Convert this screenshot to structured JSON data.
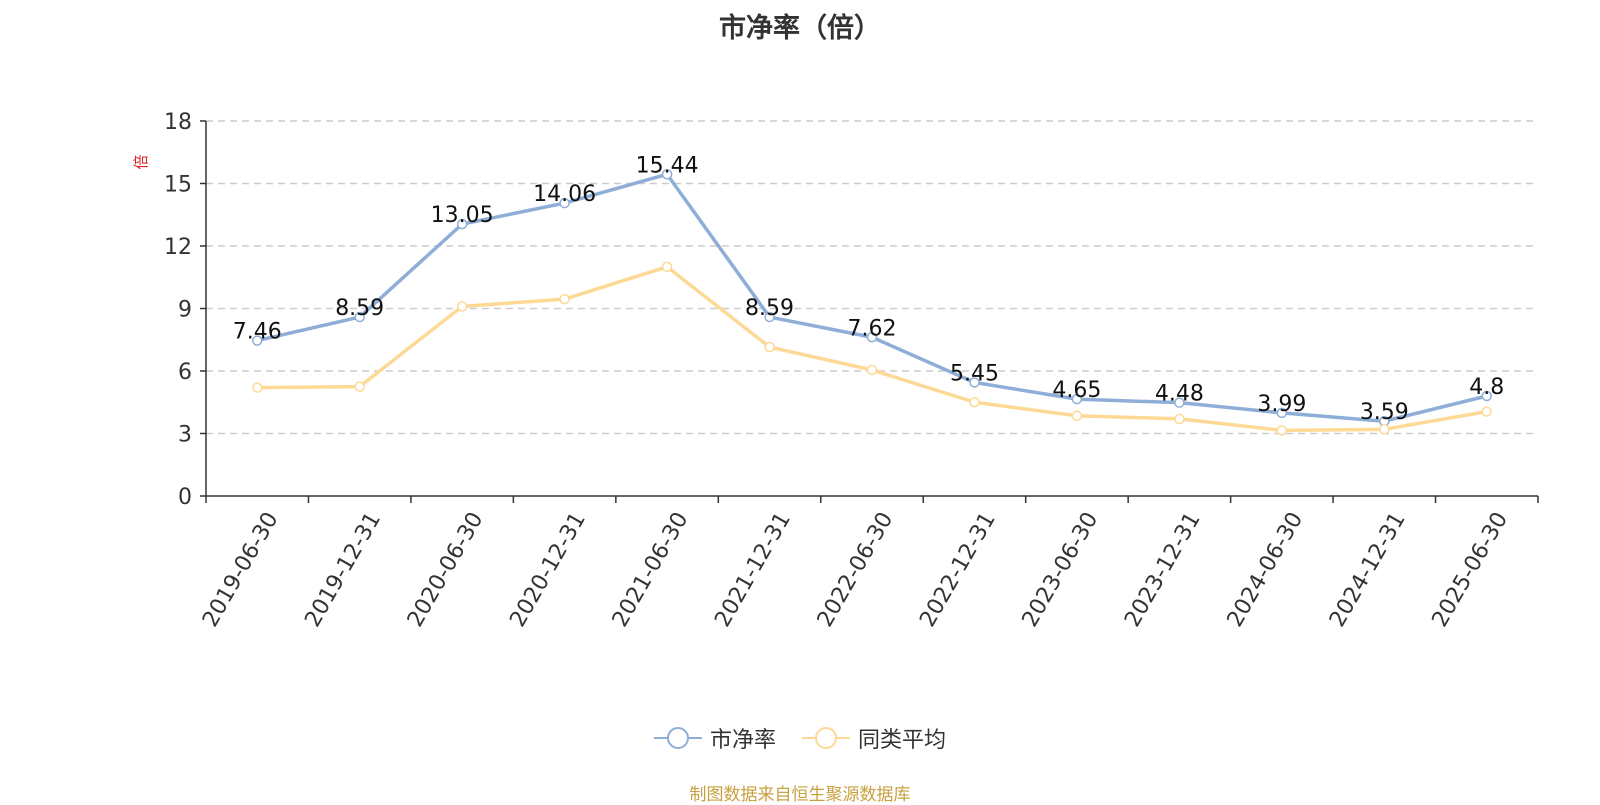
{
  "chart_data": {
    "type": "line",
    "title": "市净率（倍）",
    "ylabel": "倍",
    "xlabel": "",
    "ylim": [
      0,
      18
    ],
    "yticks": [
      0,
      3,
      6,
      9,
      12,
      15,
      18
    ],
    "grid": true,
    "legend_position": "bottom",
    "categories": [
      "2019-06-30",
      "2019-12-31",
      "2020-06-30",
      "2020-12-31",
      "2021-06-30",
      "2021-12-31",
      "2022-06-30",
      "2022-12-31",
      "2023-06-30",
      "2023-12-31",
      "2024-06-30",
      "2024-12-31",
      "2025-06-30"
    ],
    "series": [
      {
        "name": "市净率",
        "color": "#8eaed8",
        "show_labels": true,
        "values": [
          7.46,
          8.59,
          13.05,
          14.06,
          15.44,
          8.59,
          7.62,
          5.45,
          4.65,
          4.48,
          3.99,
          3.59,
          4.8
        ]
      },
      {
        "name": "同类平均",
        "color": "#fdd995",
        "show_labels": false,
        "values": [
          5.2,
          5.25,
          9.1,
          9.45,
          11.0,
          7.15,
          6.05,
          4.5,
          3.85,
          3.7,
          3.15,
          3.2,
          4.05
        ]
      }
    ]
  },
  "footer": {
    "source": "制图数据来自恒生聚源数据库"
  }
}
